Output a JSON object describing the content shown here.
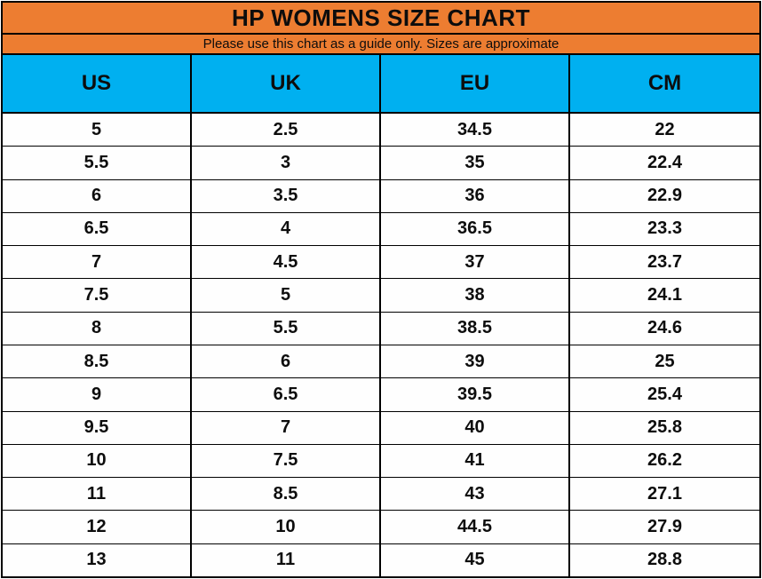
{
  "colors": {
    "orange": "#ED7D31",
    "cyan": "#00B0F0",
    "border": "#000000",
    "text": "#0d0d0d"
  },
  "header": {
    "title": "HP WOMENS SIZE CHART",
    "subtitle": "Please use this chart as a guide only. Sizes are approximate"
  },
  "chart_data": {
    "type": "table",
    "title": "HP WOMENS SIZE CHART",
    "subtitle": "Please use this chart as a guide only. Sizes are approximate",
    "columns": [
      "US",
      "UK",
      "EU",
      "CM"
    ],
    "rows": [
      [
        "5",
        "2.5",
        "34.5",
        "22"
      ],
      [
        "5.5",
        "3",
        "35",
        "22.4"
      ],
      [
        "6",
        "3.5",
        "36",
        "22.9"
      ],
      [
        "6.5",
        "4",
        "36.5",
        "23.3"
      ],
      [
        "7",
        "4.5",
        "37",
        "23.7"
      ],
      [
        "7.5",
        "5",
        "38",
        "24.1"
      ],
      [
        "8",
        "5.5",
        "38.5",
        "24.6"
      ],
      [
        "8.5",
        "6",
        "39",
        "25"
      ],
      [
        "9",
        "6.5",
        "39.5",
        "25.4"
      ],
      [
        "9.5",
        "7",
        "40",
        "25.8"
      ],
      [
        "10",
        "7.5",
        "41",
        "26.2"
      ],
      [
        "11",
        "8.5",
        "43",
        "27.1"
      ],
      [
        "12",
        "10",
        "44.5",
        "27.9"
      ],
      [
        "13",
        "11",
        "45",
        "28.8"
      ]
    ]
  }
}
